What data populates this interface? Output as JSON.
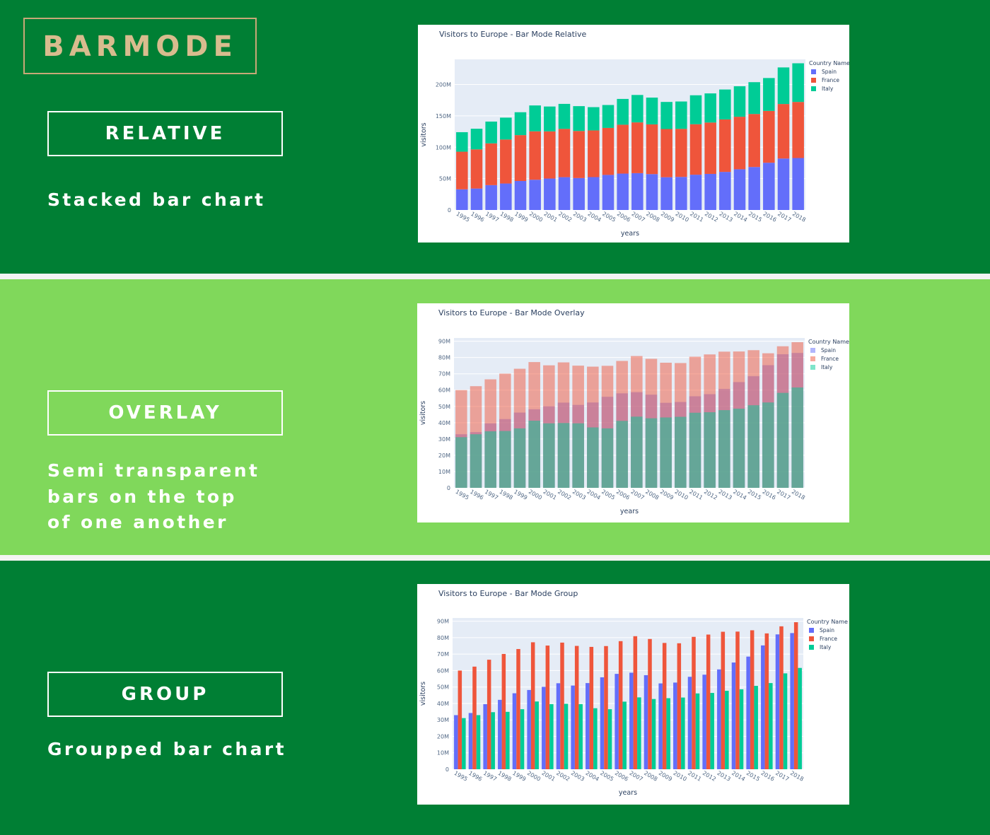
{
  "brand": "BARMODE",
  "sections": [
    {
      "mode_label": "RELATIVE",
      "description": [
        "Stacked bar chart"
      ]
    },
    {
      "mode_label": "OVERLAY",
      "description": [
        "Semi transparent",
        "bars on the top",
        "of one another"
      ]
    },
    {
      "mode_label": "GROUP",
      "description": [
        "Groupped bar chart"
      ]
    }
  ],
  "colors": {
    "spain": "#636efa",
    "france": "#ef553b",
    "italy": "#00cc96",
    "dark_green": "#007f34",
    "light_green": "#80d85b",
    "brand_gold": "#d8bc8e",
    "plot_bg": "#e5ecf6"
  },
  "chart_data": [
    {
      "type": "bar",
      "barmode": "relative",
      "title": "Visitors to Europe - Bar Mode Relative",
      "xlabel": "years",
      "ylabel": "visitors",
      "x": [
        "1995",
        "1996",
        "1997",
        "1998",
        "1999",
        "2000",
        "2001",
        "2002",
        "2003",
        "2004",
        "2005",
        "2006",
        "2007",
        "2008",
        "2009",
        "2010",
        "2011",
        "2012",
        "2013",
        "2014",
        "2015",
        "2016",
        "2017",
        "2018"
      ],
      "series": [
        {
          "name": "Spain",
          "color": "#636efa",
          "values": [
            32.9,
            34.2,
            39.6,
            42.2,
            46.2,
            48.2,
            50.1,
            52.3,
            50.9,
            52.4,
            55.9,
            58.0,
            58.7,
            57.2,
            52.2,
            52.7,
            56.2,
            57.5,
            60.7,
            64.9,
            68.5,
            75.3,
            82.0,
            82.8
          ]
        },
        {
          "name": "France",
          "color": "#ef553b",
          "values": [
            60.0,
            62.4,
            66.6,
            70.1,
            73.1,
            77.2,
            75.2,
            77.0,
            75.0,
            74.4,
            74.9,
            77.9,
            80.9,
            79.2,
            76.8,
            76.6,
            80.5,
            81.9,
            83.6,
            83.7,
            84.5,
            82.6,
            86.9,
            89.4
          ]
        },
        {
          "name": "Italy",
          "color": "#00cc96",
          "values": [
            31.1,
            32.9,
            34.7,
            34.9,
            36.5,
            41.2,
            39.6,
            39.8,
            39.6,
            37.1,
            36.5,
            41.1,
            43.7,
            42.7,
            43.2,
            43.6,
            46.1,
            46.4,
            47.7,
            48.6,
            50.7,
            52.4,
            58.3,
            61.6
          ]
        }
      ],
      "yticks": [
        "0",
        "50M",
        "100M",
        "150M",
        "200M"
      ],
      "ytick_values": [
        0,
        50,
        100,
        150,
        200
      ],
      "ylim": [
        0,
        240
      ],
      "legend_title": "Country Name",
      "legend_position": "right"
    },
    {
      "type": "bar",
      "barmode": "overlay",
      "title": "Visitors to Europe - Bar Mode Overlay",
      "xlabel": "years",
      "ylabel": "visitors",
      "x": [
        "1995",
        "1996",
        "1997",
        "1998",
        "1999",
        "2000",
        "2001",
        "2002",
        "2003",
        "2004",
        "2005",
        "2006",
        "2007",
        "2008",
        "2009",
        "2010",
        "2011",
        "2012",
        "2013",
        "2014",
        "2015",
        "2016",
        "2017",
        "2018"
      ],
      "series": [
        {
          "name": "Spain",
          "color": "#636efa",
          "values": [
            32.9,
            34.2,
            39.6,
            42.2,
            46.2,
            48.2,
            50.1,
            52.3,
            50.9,
            52.4,
            55.9,
            58.0,
            58.7,
            57.2,
            52.2,
            52.7,
            56.2,
            57.5,
            60.7,
            64.9,
            68.5,
            75.3,
            82.0,
            82.8
          ]
        },
        {
          "name": "France",
          "color": "#ef553b",
          "values": [
            60.0,
            62.4,
            66.6,
            70.1,
            73.1,
            77.2,
            75.2,
            77.0,
            75.0,
            74.4,
            74.9,
            77.9,
            80.9,
            79.2,
            76.8,
            76.6,
            80.5,
            81.9,
            83.6,
            83.7,
            84.5,
            82.6,
            86.9,
            89.4
          ]
        },
        {
          "name": "Italy",
          "color": "#00cc96",
          "values": [
            31.1,
            32.9,
            34.7,
            34.9,
            36.5,
            41.2,
            39.6,
            39.8,
            39.6,
            37.1,
            36.5,
            41.1,
            43.7,
            42.7,
            43.2,
            43.6,
            46.1,
            46.4,
            47.7,
            48.6,
            50.7,
            52.4,
            58.3,
            61.6
          ]
        }
      ],
      "yticks": [
        "0",
        "10M",
        "20M",
        "30M",
        "40M",
        "50M",
        "60M",
        "70M",
        "80M",
        "90M"
      ],
      "ytick_values": [
        0,
        10,
        20,
        30,
        40,
        50,
        60,
        70,
        80,
        90
      ],
      "ylim": [
        0,
        92
      ],
      "legend_title": "Country Name",
      "legend_position": "right"
    },
    {
      "type": "bar",
      "barmode": "group",
      "title": "Visitors to Europe - Bar Mode Group",
      "xlabel": "years",
      "ylabel": "visitors",
      "x": [
        "1995",
        "1996",
        "1997",
        "1998",
        "1999",
        "2000",
        "2001",
        "2002",
        "2003",
        "2004",
        "2005",
        "2006",
        "2007",
        "2008",
        "2009",
        "2010",
        "2011",
        "2012",
        "2013",
        "2014",
        "2015",
        "2016",
        "2017",
        "2018"
      ],
      "series": [
        {
          "name": "Spain",
          "color": "#636efa",
          "values": [
            32.9,
            34.2,
            39.6,
            42.2,
            46.2,
            48.2,
            50.1,
            52.3,
            50.9,
            52.4,
            55.9,
            58.0,
            58.7,
            57.2,
            52.2,
            52.7,
            56.2,
            57.5,
            60.7,
            64.9,
            68.5,
            75.3,
            82.0,
            82.8
          ]
        },
        {
          "name": "France",
          "color": "#ef553b",
          "values": [
            60.0,
            62.4,
            66.6,
            70.1,
            73.1,
            77.2,
            75.2,
            77.0,
            75.0,
            74.4,
            74.9,
            77.9,
            80.9,
            79.2,
            76.8,
            76.6,
            80.5,
            81.9,
            83.6,
            83.7,
            84.5,
            82.6,
            86.9,
            89.4
          ]
        },
        {
          "name": "Italy",
          "color": "#00cc96",
          "values": [
            31.1,
            32.9,
            34.7,
            34.9,
            36.5,
            41.2,
            39.6,
            39.8,
            39.6,
            37.1,
            36.5,
            41.1,
            43.7,
            42.7,
            43.2,
            43.6,
            46.1,
            46.4,
            47.7,
            48.6,
            50.7,
            52.4,
            58.3,
            61.6
          ]
        }
      ],
      "yticks": [
        "0",
        "10M",
        "20M",
        "30M",
        "40M",
        "50M",
        "60M",
        "70M",
        "80M",
        "90M"
      ],
      "ytick_values": [
        0,
        10,
        20,
        30,
        40,
        50,
        60,
        70,
        80,
        90
      ],
      "ylim": [
        0,
        92
      ],
      "legend_title": "Country Name",
      "legend_position": "right"
    }
  ]
}
